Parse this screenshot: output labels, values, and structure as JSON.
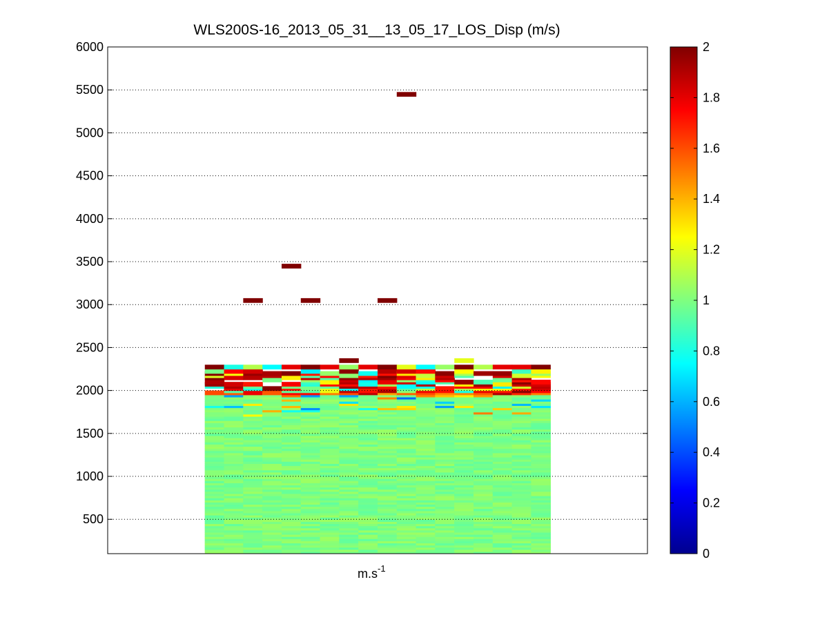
{
  "chart_data": {
    "type": "heatmap",
    "title": "WLS200S-16_2013_05_31__13_05_17_LOS_Disp (m/s)",
    "xlabel": "m.s",
    "xlabel_exponent": "-1",
    "ylabel": "",
    "ylim": [
      100,
      6000
    ],
    "yticks": [
      500,
      1000,
      1500,
      2000,
      2500,
      3000,
      3500,
      4000,
      4500,
      5000,
      5500,
      6000
    ],
    "grid": "horizontal dotted",
    "colormap": "jet",
    "clim": [
      0,
      2
    ],
    "colorbar_ticks": [
      0,
      0.2,
      0.4,
      0.6,
      0.8,
      1,
      1.2,
      1.4,
      1.6,
      1.8,
      2
    ],
    "columns": 18,
    "column_extent": [
      0.18,
      0.82
    ],
    "range_gate_height": 50,
    "dense_region": {
      "y_from": 100,
      "y_to": 2300,
      "typical_value_range": [
        0.8,
        1.2
      ]
    },
    "sparse_cells": [
      {
        "column": 2,
        "y": 3050,
        "value": 2
      },
      {
        "column": 4,
        "y": 3450,
        "value": 2
      },
      {
        "column": 5,
        "y": 3050,
        "value": 2
      },
      {
        "column": 9,
        "y": 3050,
        "value": 2
      },
      {
        "column": 10,
        "y": 5450,
        "value": 2
      },
      {
        "column": 7,
        "y": 2350,
        "value": 2
      },
      {
        "column": 13,
        "y": 2350,
        "value": 1.2
      }
    ],
    "top_row_values": [
      2,
      0.8,
      1.1,
      0.75,
      1.8,
      2,
      1.8,
      1.05,
      1.8,
      2,
      1.2,
      0.75,
      1.05,
      2,
      1.1,
      1.8,
      1.8,
      2
    ]
  }
}
